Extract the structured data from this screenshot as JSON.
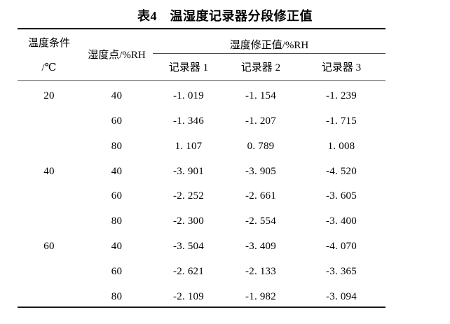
{
  "title": "表4　温湿度记录器分段修正值",
  "table": {
    "col1_header_line1": "温度条件",
    "col1_header_line2": "/℃",
    "col2_header": "湿度点/%RH",
    "group_header": "湿度修正值/%RH",
    "sub_headers": [
      "记录器 1",
      "记录器 2",
      "记录器 3"
    ],
    "rows": [
      {
        "temp": "20",
        "humidity": "40",
        "r1": "-1. 019",
        "r2": "-1. 154",
        "r3": "-1. 239"
      },
      {
        "temp": "",
        "humidity": "60",
        "r1": "-1. 346",
        "r2": "-1. 207",
        "r3": "-1. 715"
      },
      {
        "temp": "",
        "humidity": "80",
        "r1": "1. 107",
        "r2": "0. 789",
        "r3": "1. 008"
      },
      {
        "temp": "40",
        "humidity": "40",
        "r1": "-3. 901",
        "r2": "-3. 905",
        "r3": "-4. 520"
      },
      {
        "temp": "",
        "humidity": "60",
        "r1": "-2. 252",
        "r2": "-2. 661",
        "r3": "-3. 605"
      },
      {
        "temp": "",
        "humidity": "80",
        "r1": "-2. 300",
        "r2": "-2. 554",
        "r3": "-3. 400"
      },
      {
        "temp": "60",
        "humidity": "40",
        "r1": "-3. 504",
        "r2": "-3. 409",
        "r3": "-4. 070"
      },
      {
        "temp": "",
        "humidity": "60",
        "r1": "-2. 621",
        "r2": "-2. 133",
        "r3": "-3. 365"
      },
      {
        "temp": "",
        "humidity": "80",
        "r1": "-2. 109",
        "r2": "-1. 982",
        "r3": "-3. 094"
      }
    ],
    "rule_color_heavy": "#1a1a1a",
    "rule_color_light": "#4d4d4d",
    "text_color": "#000000"
  },
  "chart_data": {
    "type": "table",
    "title": "表4　温湿度记录器分段修正值",
    "columns": [
      "温度条件/℃",
      "湿度点/%RH",
      "记录器 1",
      "记录器 2",
      "记录器 3"
    ],
    "group_header": "湿度修正值/%RH",
    "rows": [
      [
        "20",
        "40",
        -1.019,
        -1.154,
        -1.239
      ],
      [
        "",
        "60",
        -1.346,
        -1.207,
        -1.715
      ],
      [
        "",
        "80",
        1.107,
        0.789,
        1.008
      ],
      [
        "40",
        "40",
        -3.901,
        -3.905,
        -4.52
      ],
      [
        "",
        "60",
        -2.252,
        -2.661,
        -3.605
      ],
      [
        "",
        "80",
        -2.3,
        -2.554,
        -3.4
      ],
      [
        "60",
        "40",
        -3.504,
        -3.409,
        -4.07
      ],
      [
        "",
        "60",
        -2.621,
        -2.133,
        -3.365
      ],
      [
        "",
        "80",
        -2.109,
        -1.982,
        -3.094
      ]
    ]
  }
}
